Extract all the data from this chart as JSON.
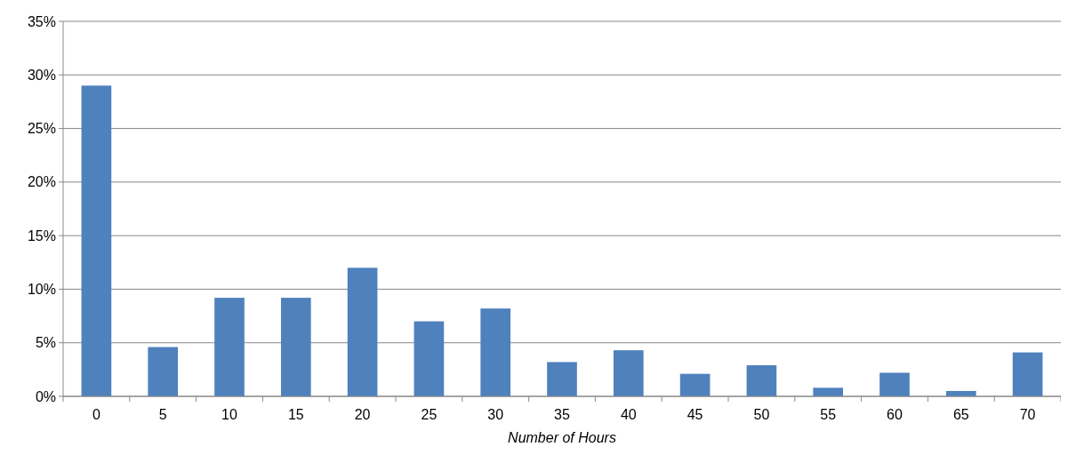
{
  "chart_data": {
    "type": "bar",
    "xlabel": "Number of Hours",
    "categories": [
      "0",
      "5",
      "10",
      "15",
      "20",
      "25",
      "30",
      "35",
      "40",
      "45",
      "50",
      "55",
      "60",
      "65",
      "70"
    ],
    "values": [
      29,
      4.6,
      9.2,
      9.2,
      12,
      7,
      8.2,
      3.2,
      4.3,
      2.1,
      2.9,
      0.8,
      2.2,
      0.5,
      4.1
    ],
    "color": "#4f81bd",
    "ylim": [
      0,
      35
    ],
    "yticks": [
      {
        "value": 0,
        "label": "0%"
      },
      {
        "value": 5,
        "label": "5%"
      },
      {
        "value": 10,
        "label": "10%"
      },
      {
        "value": 15,
        "label": "15%"
      },
      {
        "value": 20,
        "label": "20%"
      },
      {
        "value": 25,
        "label": "25%"
      },
      {
        "value": 30,
        "label": "30%"
      },
      {
        "value": 35,
        "label": "35%"
      }
    ],
    "grid": "y"
  }
}
